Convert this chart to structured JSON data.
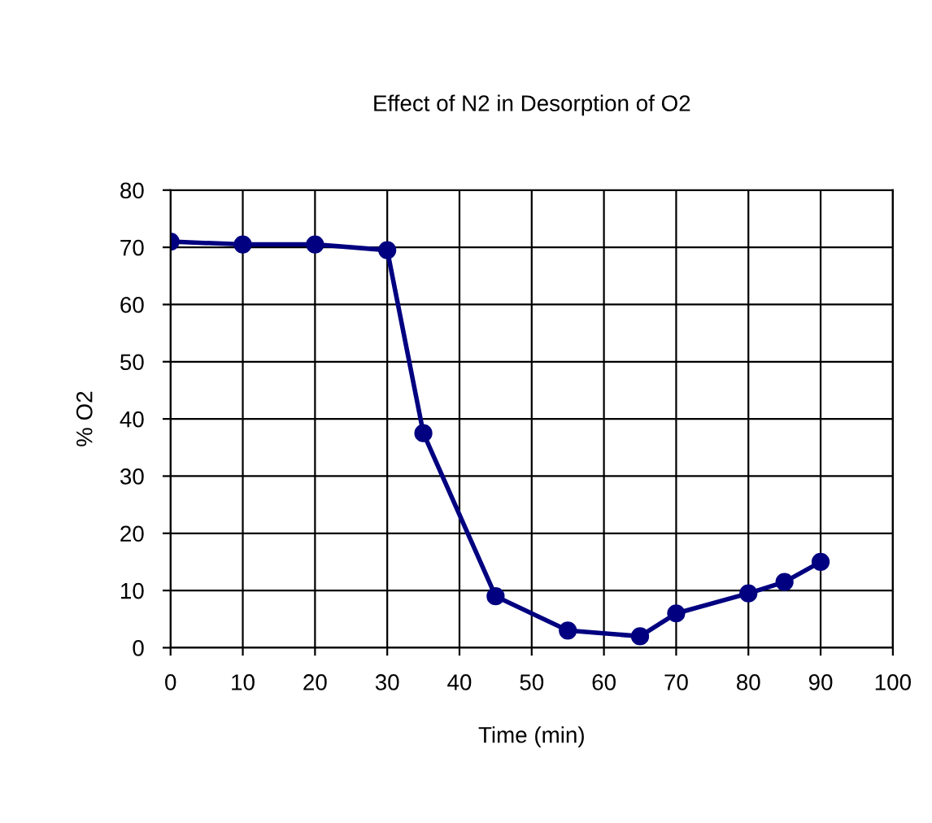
{
  "chart_data": {
    "type": "line",
    "title": "Effect of N2 in Desorption of O2",
    "xlabel": "Time (min)",
    "ylabel": "% O2",
    "x": [
      0,
      10,
      20,
      30,
      35,
      45,
      55,
      65,
      70,
      80,
      85,
      90
    ],
    "series": [
      {
        "color": "#000080",
        "values": [
          71,
          70.5,
          70.5,
          69.5,
          37.5,
          9,
          3,
          2,
          6,
          9.5,
          11.5,
          15
        ]
      }
    ],
    "xlim": [
      0,
      100
    ],
    "xticks": [
      0,
      10,
      20,
      30,
      40,
      50,
      60,
      70,
      80,
      90,
      100
    ],
    "ylim": [
      0,
      80
    ],
    "yticks": [
      0,
      10,
      20,
      30,
      40,
      50,
      60,
      70,
      80
    ],
    "grid": true,
    "marker": "circle",
    "line_style": "solid"
  }
}
